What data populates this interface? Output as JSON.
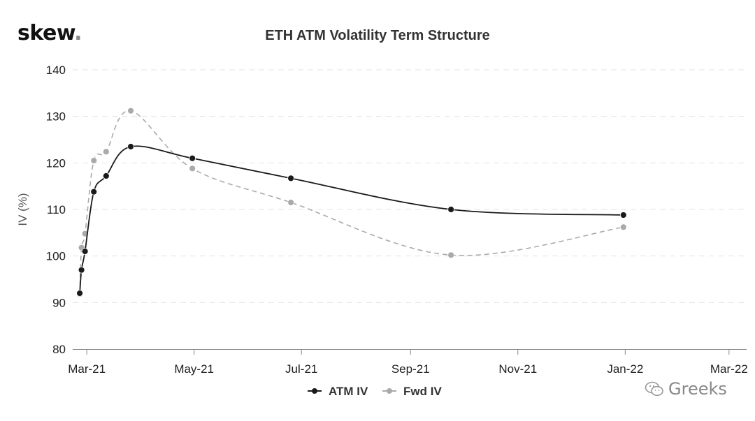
{
  "logo": {
    "text": "skew",
    "dot": "."
  },
  "watermark": {
    "text": "Greeks",
    "icon": "wechat-icon"
  },
  "chart_data": {
    "type": "line",
    "title": "ETH ATM Volatility Term Structure",
    "xlabel": "",
    "ylabel": "IV (%)",
    "ylim": [
      80,
      140
    ],
    "yticks": [
      80,
      90,
      100,
      110,
      120,
      130,
      140
    ],
    "xlim": [
      "2021-02-21",
      "2022-03-11"
    ],
    "xticks": [
      {
        "date": "2021-03-01",
        "label": "Mar-21"
      },
      {
        "date": "2021-05-01",
        "label": "May-21"
      },
      {
        "date": "2021-07-01",
        "label": "Jul-21"
      },
      {
        "date": "2021-09-01",
        "label": "Sep-21"
      },
      {
        "date": "2021-11-01",
        "label": "Nov-21"
      },
      {
        "date": "2022-01-01",
        "label": "Jan-22"
      },
      {
        "date": "2022-03-01",
        "label": "Mar-22"
      }
    ],
    "grid": "horizontal-dashed",
    "legend": "bottom-center",
    "series": [
      {
        "name": "ATM IV",
        "color": "#1a1a1a",
        "dash": "solid",
        "points": [
          {
            "x": "2021-02-25",
            "y": 92.0
          },
          {
            "x": "2021-02-26",
            "y": 97.0
          },
          {
            "x": "2021-02-28",
            "y": 101.0
          },
          {
            "x": "2021-03-05",
            "y": 113.8
          },
          {
            "x": "2021-03-12",
            "y": 117.2
          },
          {
            "x": "2021-03-26",
            "y": 123.5
          },
          {
            "x": "2021-04-30",
            "y": 121.0
          },
          {
            "x": "2021-06-25",
            "y": 116.7
          },
          {
            "x": "2021-09-24",
            "y": 110.0
          },
          {
            "x": "2021-12-31",
            "y": 108.8
          }
        ]
      },
      {
        "name": "Fwd IV",
        "color": "#aaaaaa",
        "dash": "dashed",
        "points": [
          {
            "x": "2021-02-25",
            "y": 91.8
          },
          {
            "x": "2021-02-26",
            "y": 101.8
          },
          {
            "x": "2021-02-28",
            "y": 104.8
          },
          {
            "x": "2021-03-05",
            "y": 120.5
          },
          {
            "x": "2021-03-12",
            "y": 122.4
          },
          {
            "x": "2021-03-26",
            "y": 131.2
          },
          {
            "x": "2021-04-30",
            "y": 118.8
          },
          {
            "x": "2021-06-25",
            "y": 111.5
          },
          {
            "x": "2021-09-24",
            "y": 100.2
          },
          {
            "x": "2021-12-31",
            "y": 106.2
          }
        ]
      }
    ]
  }
}
